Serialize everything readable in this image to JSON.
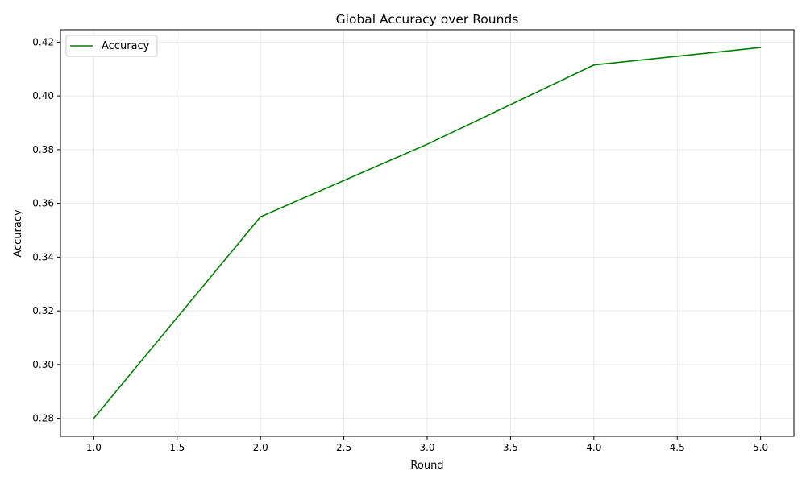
{
  "chart_data": {
    "type": "line",
    "title": "Global Accuracy over Rounds",
    "xlabel": "Round",
    "ylabel": "Accuracy",
    "xlim": [
      0.8,
      5.2
    ],
    "ylim": [
      0.2733,
      0.4246
    ],
    "x_ticks": [
      "1.0",
      "1.5",
      "2.0",
      "2.5",
      "3.0",
      "3.5",
      "4.0",
      "4.5",
      "5.0"
    ],
    "y_ticks": [
      "0.28",
      "0.30",
      "0.32",
      "0.34",
      "0.36",
      "0.38",
      "0.40",
      "0.42"
    ],
    "grid": true,
    "legend_position": "top-left",
    "x": [
      1,
      2,
      3,
      4,
      5
    ],
    "series": [
      {
        "name": "Accuracy",
        "color": "#008000",
        "values": [
          0.28,
          0.355,
          0.382,
          0.4115,
          0.418
        ]
      }
    ]
  }
}
